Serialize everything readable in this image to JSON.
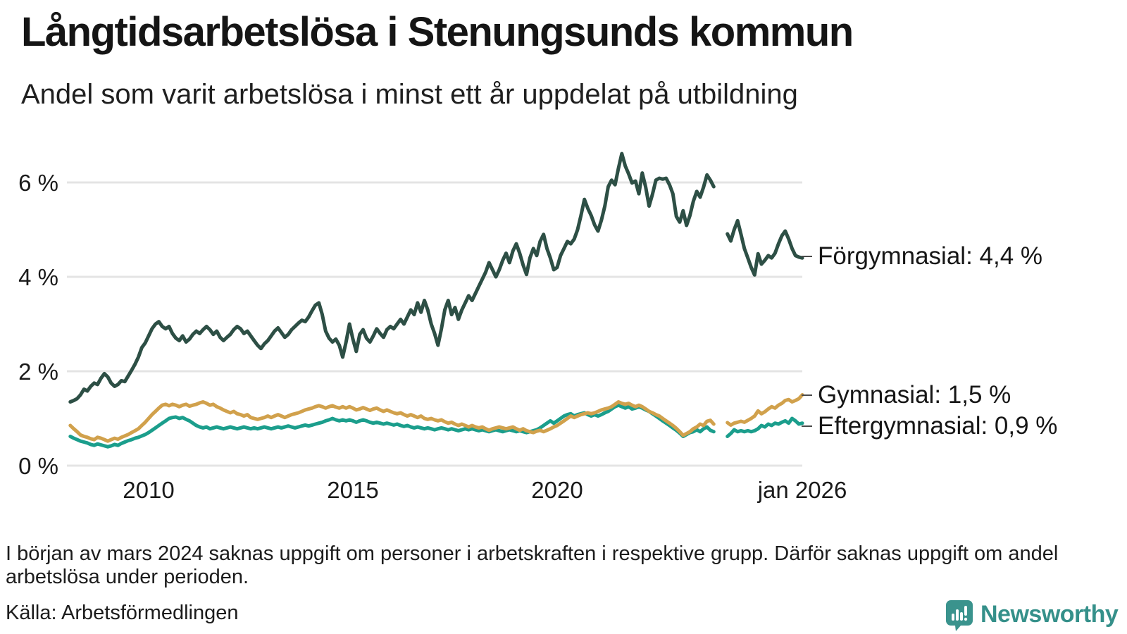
{
  "header": {
    "title": "Långtidsarbetslösa i Stenungsunds kommun",
    "subtitle": "Andel som varit arbetslösa i minst ett år uppdelat på utbildning"
  },
  "chart_data": {
    "type": "line",
    "unit": "%",
    "frequency": "monthly",
    "start": "2008-02",
    "end": "2026-01",
    "grid_color": "#e4e4e4",
    "missing_months": [
      "2023-12",
      "2024-01",
      "2024-02"
    ],
    "x_axis": {
      "ticks": [
        {
          "label": "2010",
          "year": 2010
        },
        {
          "label": "2015",
          "year": 2015
        },
        {
          "label": "2020",
          "year": 2020
        },
        {
          "label": "jan 2026",
          "year": 2026
        }
      ],
      "range_years": [
        2008.08,
        2026.0
      ]
    },
    "y_axis": {
      "unit": "%",
      "range": [
        0,
        6.8
      ],
      "ticks": [
        {
          "label": "0 %",
          "value": 0
        },
        {
          "label": "2 %",
          "value": 2
        },
        {
          "label": "4 %",
          "value": 4
        },
        {
          "label": "6 %",
          "value": 6
        }
      ]
    },
    "series": [
      {
        "id": "forgymnasial",
        "name": "Förgymnasial",
        "color": "#2d4f45",
        "end_value": "4,4 %",
        "end_label": "Förgymnasial: 4,4 %",
        "values": [
          1.35,
          1.38,
          1.42,
          1.5,
          1.62,
          1.58,
          1.68,
          1.75,
          1.72,
          1.85,
          1.95,
          1.88,
          1.75,
          1.68,
          1.72,
          1.8,
          1.78,
          1.9,
          2.02,
          2.15,
          2.3,
          2.5,
          2.6,
          2.75,
          2.9,
          3.0,
          3.05,
          2.95,
          2.9,
          2.95,
          2.8,
          2.7,
          2.65,
          2.75,
          2.62,
          2.68,
          2.78,
          2.85,
          2.8,
          2.88,
          2.95,
          2.88,
          2.78,
          2.85,
          2.72,
          2.65,
          2.72,
          2.78,
          2.88,
          2.95,
          2.9,
          2.8,
          2.85,
          2.75,
          2.65,
          2.55,
          2.48,
          2.58,
          2.65,
          2.75,
          2.85,
          2.92,
          2.82,
          2.72,
          2.78,
          2.88,
          2.95,
          3.02,
          3.08,
          3.05,
          3.15,
          3.28,
          3.4,
          3.45,
          3.2,
          2.85,
          2.7,
          2.62,
          2.68,
          2.55,
          2.3,
          2.62,
          3.0,
          2.68,
          2.42,
          2.78,
          2.88,
          2.7,
          2.62,
          2.75,
          2.9,
          2.8,
          2.72,
          2.88,
          2.95,
          2.9,
          3.0,
          3.1,
          3.0,
          3.15,
          3.3,
          3.2,
          3.45,
          3.25,
          3.5,
          3.3,
          3.0,
          2.8,
          2.55,
          2.9,
          3.3,
          3.5,
          3.2,
          3.35,
          3.1,
          3.3,
          3.45,
          3.6,
          3.5,
          3.65,
          3.8,
          3.95,
          4.1,
          4.3,
          4.15,
          4.0,
          4.15,
          4.35,
          4.5,
          4.3,
          4.55,
          4.7,
          4.5,
          4.25,
          4.05,
          4.4,
          4.6,
          4.45,
          4.75,
          4.9,
          4.6,
          4.4,
          4.15,
          4.2,
          4.45,
          4.6,
          4.75,
          4.7,
          4.8,
          5.0,
          5.3,
          5.64,
          5.45,
          5.3,
          5.1,
          4.97,
          5.2,
          5.5,
          5.91,
          6.05,
          5.95,
          6.3,
          6.61,
          6.35,
          6.18,
          5.99,
          6.03,
          5.76,
          6.2,
          5.9,
          5.5,
          5.75,
          6.05,
          6.09,
          6.07,
          6.09,
          5.95,
          5.76,
          5.28,
          5.16,
          5.4,
          5.09,
          5.3,
          5.6,
          5.81,
          5.69,
          5.9,
          6.16,
          6.05,
          5.91,
          null,
          null,
          null,
          4.91,
          4.76,
          5.0,
          5.19,
          4.9,
          4.6,
          4.4,
          4.2,
          4.04,
          4.49,
          4.27,
          4.35,
          4.45,
          4.4,
          4.5,
          4.7,
          4.87,
          4.97,
          4.8,
          4.6,
          4.45,
          4.42,
          4.4
        ]
      },
      {
        "id": "gymnasial",
        "name": "Gymnasial",
        "color": "#d1a14c",
        "end_value": "1,5 %",
        "end_label": "Gymnasial: 1,5 %",
        "values": [
          0.85,
          0.78,
          0.72,
          0.65,
          0.62,
          0.6,
          0.57,
          0.55,
          0.6,
          0.58,
          0.55,
          0.52,
          0.55,
          0.58,
          0.56,
          0.6,
          0.63,
          0.66,
          0.7,
          0.74,
          0.78,
          0.85,
          0.92,
          1.0,
          1.08,
          1.15,
          1.22,
          1.28,
          1.3,
          1.27,
          1.3,
          1.28,
          1.25,
          1.28,
          1.3,
          1.26,
          1.28,
          1.3,
          1.33,
          1.35,
          1.32,
          1.28,
          1.3,
          1.25,
          1.22,
          1.18,
          1.15,
          1.12,
          1.15,
          1.1,
          1.08,
          1.05,
          1.08,
          1.02,
          1.0,
          0.98,
          1.0,
          1.02,
          1.05,
          1.02,
          1.05,
          1.08,
          1.05,
          1.02,
          1.05,
          1.08,
          1.1,
          1.12,
          1.15,
          1.18,
          1.2,
          1.22,
          1.25,
          1.27,
          1.25,
          1.22,
          1.25,
          1.27,
          1.24,
          1.22,
          1.25,
          1.22,
          1.25,
          1.22,
          1.18,
          1.2,
          1.23,
          1.2,
          1.17,
          1.2,
          1.22,
          1.18,
          1.15,
          1.18,
          1.15,
          1.12,
          1.1,
          1.12,
          1.08,
          1.05,
          1.08,
          1.05,
          1.02,
          1.05,
          1.0,
          0.98,
          1.0,
          0.97,
          0.95,
          0.97,
          0.93,
          0.9,
          0.92,
          0.88,
          0.85,
          0.88,
          0.85,
          0.82,
          0.85,
          0.82,
          0.8,
          0.82,
          0.78,
          0.75,
          0.78,
          0.8,
          0.82,
          0.8,
          0.78,
          0.8,
          0.82,
          0.78,
          0.75,
          0.78,
          0.74,
          0.72,
          0.7,
          0.73,
          0.75,
          0.72,
          0.75,
          0.78,
          0.82,
          0.85,
          0.9,
          0.95,
          1.0,
          1.05,
          1.02,
          1.05,
          1.08,
          1.1,
          1.12,
          1.1,
          1.12,
          1.15,
          1.18,
          1.2,
          1.22,
          1.25,
          1.3,
          1.35,
          1.32,
          1.3,
          1.32,
          1.28,
          1.25,
          1.28,
          1.25,
          1.2,
          1.15,
          1.12,
          1.08,
          1.05,
          1.0,
          0.95,
          0.9,
          0.85,
          0.79,
          0.72,
          0.64,
          0.68,
          0.72,
          0.78,
          0.82,
          0.88,
          0.85,
          0.94,
          0.96,
          0.88,
          null,
          null,
          null,
          0.91,
          0.86,
          0.9,
          0.92,
          0.94,
          0.92,
          0.96,
          1.0,
          1.05,
          1.16,
          1.1,
          1.14,
          1.2,
          1.25,
          1.22,
          1.28,
          1.32,
          1.38,
          1.4,
          1.35,
          1.38,
          1.42,
          1.5
        ]
      },
      {
        "id": "eftergymnasial",
        "name": "Eftergymnasial",
        "color": "#1b9e8c",
        "end_value": "0,9 %",
        "end_label": "Eftergymnasial: 0,9 %",
        "values": [
          0.62,
          0.58,
          0.55,
          0.52,
          0.5,
          0.48,
          0.45,
          0.43,
          0.46,
          0.44,
          0.42,
          0.4,
          0.42,
          0.45,
          0.43,
          0.47,
          0.5,
          0.53,
          0.55,
          0.58,
          0.6,
          0.63,
          0.66,
          0.7,
          0.75,
          0.8,
          0.85,
          0.9,
          0.95,
          1.0,
          1.02,
          1.03,
          1.0,
          1.02,
          0.98,
          0.95,
          0.9,
          0.85,
          0.82,
          0.8,
          0.82,
          0.78,
          0.8,
          0.82,
          0.8,
          0.78,
          0.8,
          0.82,
          0.8,
          0.78,
          0.8,
          0.82,
          0.8,
          0.78,
          0.8,
          0.78,
          0.8,
          0.82,
          0.8,
          0.78,
          0.8,
          0.82,
          0.8,
          0.82,
          0.84,
          0.82,
          0.8,
          0.82,
          0.84,
          0.86,
          0.84,
          0.86,
          0.88,
          0.9,
          0.92,
          0.95,
          0.97,
          1.0,
          0.97,
          0.95,
          0.97,
          0.95,
          0.97,
          0.95,
          0.92,
          0.95,
          0.97,
          0.95,
          0.92,
          0.9,
          0.92,
          0.9,
          0.88,
          0.9,
          0.88,
          0.86,
          0.88,
          0.85,
          0.83,
          0.85,
          0.82,
          0.8,
          0.82,
          0.8,
          0.78,
          0.8,
          0.78,
          0.76,
          0.78,
          0.8,
          0.78,
          0.76,
          0.78,
          0.76,
          0.74,
          0.76,
          0.78,
          0.76,
          0.78,
          0.76,
          0.74,
          0.76,
          0.74,
          0.72,
          0.74,
          0.76,
          0.74,
          0.72,
          0.74,
          0.76,
          0.74,
          0.72,
          0.74,
          0.72,
          0.7,
          0.72,
          0.74,
          0.76,
          0.8,
          0.85,
          0.9,
          0.95,
          0.9,
          0.95,
          1.0,
          1.05,
          1.08,
          1.1,
          1.05,
          1.08,
          1.1,
          1.12,
          1.08,
          1.05,
          1.08,
          1.05,
          1.08,
          1.12,
          1.15,
          1.2,
          1.25,
          1.28,
          1.25,
          1.22,
          1.25,
          1.2,
          1.22,
          1.25,
          1.22,
          1.18,
          1.15,
          1.1,
          1.05,
          1.0,
          0.95,
          0.9,
          0.85,
          0.8,
          0.75,
          0.69,
          0.62,
          0.66,
          0.7,
          0.72,
          0.76,
          0.72,
          0.78,
          0.82,
          0.75,
          0.72,
          null,
          null,
          null,
          0.62,
          0.68,
          0.76,
          0.72,
          0.74,
          0.72,
          0.74,
          0.72,
          0.74,
          0.78,
          0.85,
          0.82,
          0.88,
          0.85,
          0.9,
          0.88,
          0.92,
          0.95,
          0.9,
          1.0,
          0.95,
          0.88,
          0.9
        ]
      }
    ]
  },
  "footer": {
    "note": "I början av mars 2024 saknas uppgift om personer i arbetskraften i respektive grupp. Därför saknas uppgift om andel arbetslösa under perioden.",
    "source": "Källa: Arbetsförmedlingen",
    "brand": "Newsworthy",
    "brand_color": "#35908a"
  }
}
